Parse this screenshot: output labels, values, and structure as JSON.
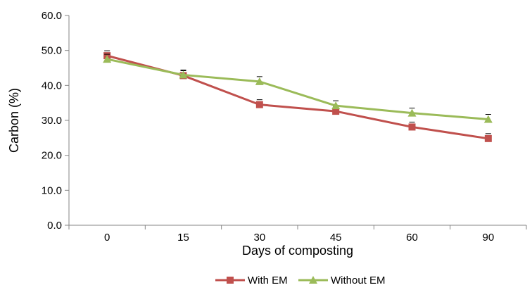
{
  "chart_data": {
    "type": "line",
    "title": "",
    "xlabel": "Days of composting",
    "ylabel": "Carbon (%)",
    "categories": [
      "0",
      "15",
      "30",
      "45",
      "60",
      "90"
    ],
    "ylim": [
      0,
      60
    ],
    "yticks": [
      "0.0",
      "10.0",
      "20.0",
      "30.0",
      "40.0",
      "50.0",
      "60.0"
    ],
    "grid": false,
    "legend_position": "bottom",
    "series": [
      {
        "name": "With EM",
        "color": "#c0504d",
        "marker": "square",
        "values": [
          48.5,
          42.8,
          34.5,
          32.6,
          28.1,
          24.8
        ]
      },
      {
        "name": "Without EM",
        "color": "#9bbb59",
        "marker": "triangle",
        "values": [
          47.5,
          43.0,
          41.1,
          34.2,
          32.1,
          30.3
        ]
      }
    ]
  }
}
